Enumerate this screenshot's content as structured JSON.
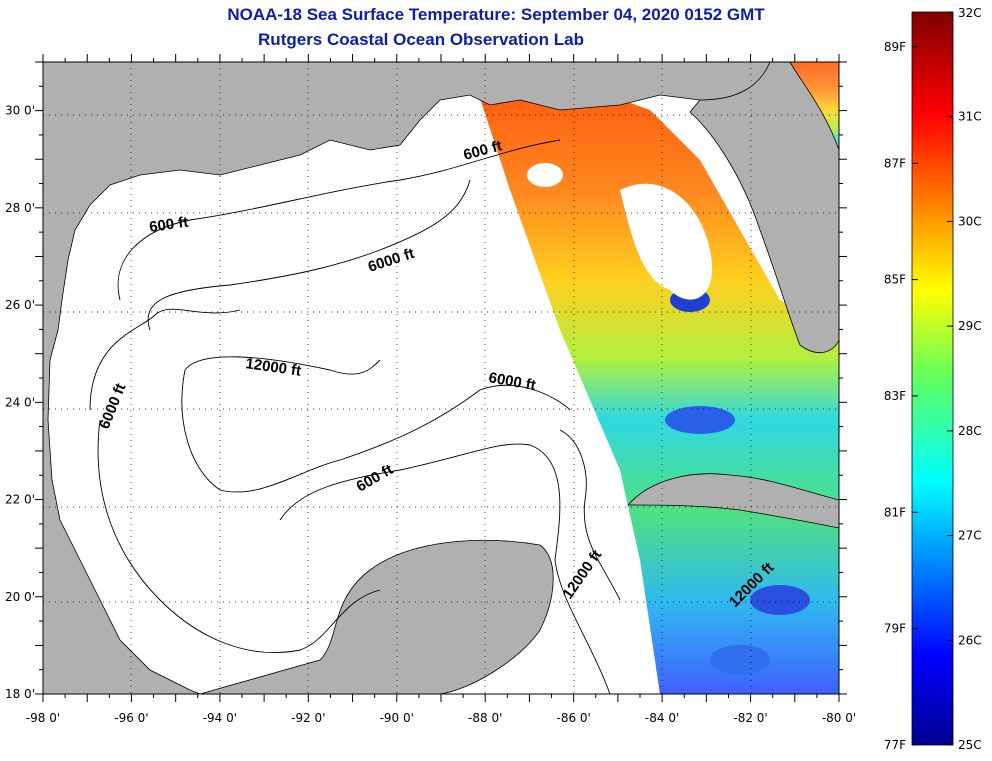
{
  "title": "NOAA-18 Sea Surface Temperature:  September 04, 2020 0152 GMT",
  "subtitle": "Rutgers Coastal Ocean Observation Lab",
  "map": {
    "lon_range": [
      -98,
      -80
    ],
    "lat_range": [
      18,
      31
    ],
    "lon_labels": [
      "-98 0'",
      "-96 0'",
      "-94 0'",
      "-92 0'",
      "-90 0'",
      "-88 0'",
      "-86 0'",
      "-84 0'",
      "-82 0'",
      "-80 0'"
    ],
    "lat_labels": [
      "30 0'",
      "28 0'",
      "26 0'",
      "24 0'",
      "22 0'",
      "20 0'",
      "18 0'"
    ],
    "contour_labels": [
      "600 ft",
      "600 ft",
      "6000 ft",
      "12000 ft",
      "6000 ft",
      "6000 ft",
      "600 ft",
      "12000 ft",
      "12000 ft"
    ],
    "land_color": "#b0b0b0",
    "grid": "dotted"
  },
  "colorbar": {
    "celsius_labels": [
      "32C",
      "31C",
      "30C",
      "29C",
      "28C",
      "27C",
      "26C",
      "25C"
    ],
    "fahrenheit_labels": [
      "89F",
      "87F",
      "85F",
      "83F",
      "81F",
      "79F",
      "77F"
    ],
    "colormap": "jet",
    "range_c": [
      25,
      32
    ]
  }
}
